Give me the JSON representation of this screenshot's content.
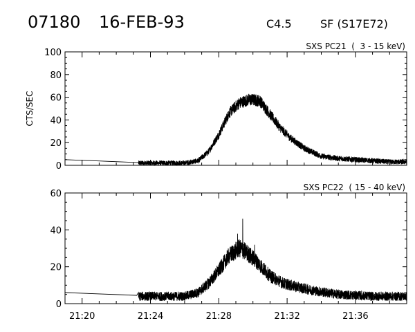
{
  "header": {
    "event_id": "07180",
    "date": "16-FEB-93",
    "goes_class": "C4.5",
    "flare_info": "SF (S17E72)"
  },
  "chart_data": [
    {
      "type": "line",
      "title": "SXS PC21  (  3 - 15 keV)",
      "ylabel": "CTS/SEC",
      "xlabel": "",
      "xlim": [
        "21:19",
        "21:39"
      ],
      "ylim": [
        0,
        100
      ],
      "yticks": [
        0,
        20,
        40,
        60,
        80,
        100
      ],
      "xticks": [
        "21:20",
        "21:24",
        "21:28",
        "21:32",
        "21:36"
      ],
      "show_xtick_labels": false,
      "grid": false,
      "series": [
        {
          "name": "",
          "style": "noisy",
          "noise_amplitude": 3.5,
          "points": [
            [
              "21:19",
              5
            ],
            [
              "21:23.2",
              2.5
            ],
            [
              "21:23.3",
              2
            ],
            [
              "21:26",
              2
            ],
            [
              "21:26.8",
              4
            ],
            [
              "21:27.4",
              12
            ],
            [
              "21:28",
              27
            ],
            [
              "21:28.6",
              46
            ],
            [
              "21:29.2",
              55
            ],
            [
              "21:29.8",
              58
            ],
            [
              "21:30.4",
              57
            ],
            [
              "21:31",
              45
            ],
            [
              "21:31.6",
              33
            ],
            [
              "21:32.2",
              24
            ],
            [
              "21:33",
              15
            ],
            [
              "21:34",
              8
            ],
            [
              "21:35",
              6
            ],
            [
              "21:36",
              5
            ],
            [
              "21:37",
              4
            ],
            [
              "21:38",
              3
            ],
            [
              "21:39",
              3
            ]
          ]
        }
      ]
    },
    {
      "type": "line",
      "title": "SXS PC22  ( 15 - 40 keV)",
      "ylabel": "",
      "xlabel": "",
      "xlim": [
        "21:19",
        "21:39"
      ],
      "ylim": [
        0,
        60
      ],
      "yticks": [
        0,
        20,
        40,
        60
      ],
      "xticks": [
        "21:20",
        "21:24",
        "21:28",
        "21:32",
        "21:36"
      ],
      "show_xtick_labels": true,
      "grid": false,
      "series": [
        {
          "name": "",
          "style": "noisy",
          "noise_amplitude": 3.5,
          "points": [
            [
              "21:19",
              6
            ],
            [
              "21:23.2",
              4.5
            ],
            [
              "21:23.3",
              4
            ],
            [
              "21:26",
              4
            ],
            [
              "21:26.8",
              6
            ],
            [
              "21:27.4",
              11
            ],
            [
              "21:28",
              18
            ],
            [
              "21:28.6",
              26
            ],
            [
              "21:29.2",
              30
            ],
            [
              "21:29.6",
              28
            ],
            [
              "21:30.2",
              23
            ],
            [
              "21:31",
              15
            ],
            [
              "21:31.8",
              11
            ],
            [
              "21:32.6",
              9
            ],
            [
              "21:33.6",
              7
            ],
            [
              "21:35",
              5
            ],
            [
              "21:37",
              4
            ],
            [
              "21:39",
              4
            ]
          ],
          "spikes": [
            [
              "21:29.4",
              46
            ],
            [
              "21:29.1",
              38
            ],
            [
              "21:30.1",
              32
            ]
          ]
        }
      ]
    }
  ]
}
